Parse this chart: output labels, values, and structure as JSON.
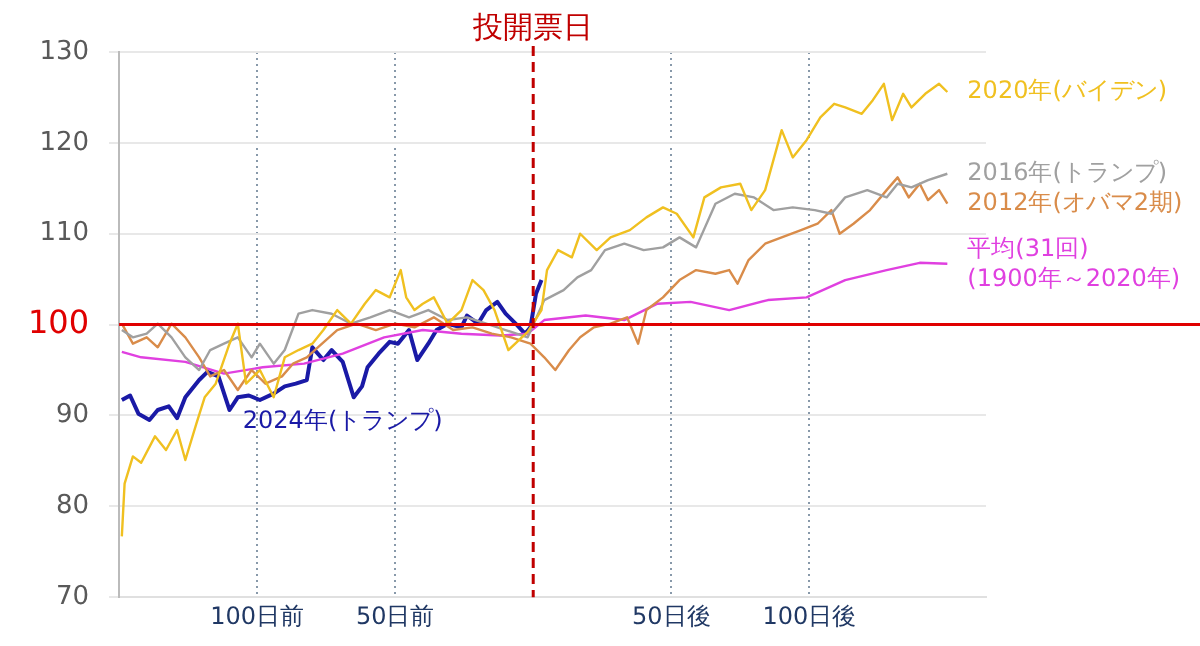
{
  "chart_data": {
    "type": "line",
    "xlim": [
      -150,
      164
    ],
    "ylim": [
      70,
      130
    ],
    "xticks": [
      {
        "value": -100,
        "label": "100日前"
      },
      {
        "value": -50,
        "label": "50日前"
      },
      {
        "value": 50,
        "label": "50日後"
      },
      {
        "value": 100,
        "label": "100日後"
      }
    ],
    "yticks": [
      70,
      80,
      90,
      100,
      110,
      120,
      130
    ],
    "grid": true,
    "legend": false,
    "marker": "none",
    "line_style": "solid",
    "ref_lines": [
      {
        "axis": "y",
        "value": 100,
        "label": null,
        "color": "#e00000",
        "line_style": "solid"
      },
      {
        "axis": "x",
        "value": 0,
        "label": "投開票日",
        "color": "#c00000",
        "line_style": "dashed"
      }
    ],
    "series": [
      {
        "name": "2020年(バイデン)",
        "color": "#f0c020",
        "x": [
          -149,
          -148,
          -145,
          -142,
          -137,
          -133,
          -129,
          -126,
          -122,
          -119,
          -115,
          -110,
          -107,
          -104,
          -99,
          -94,
          -90,
          -85,
          -80,
          -76,
          -71,
          -66,
          -61,
          -57,
          -52,
          -48,
          -46,
          -43,
          -40,
          -36,
          -31,
          -26,
          -22,
          -18,
          -14,
          -9,
          -2,
          3,
          5,
          9,
          14,
          17,
          23,
          28,
          35,
          41,
          47,
          52,
          58,
          62,
          68,
          75,
          79,
          84,
          90,
          94,
          99,
          104,
          109,
          113,
          119,
          123,
          127,
          130,
          134,
          137,
          142,
          147,
          150
        ],
        "values": [
          76.7,
          82.5,
          85.5,
          84.8,
          87.7,
          86.2,
          88.4,
          85.1,
          89.1,
          92,
          93.5,
          97.9,
          100.1,
          93.5,
          95,
          92,
          96.4,
          97.2,
          97.9,
          99.4,
          101.6,
          100.1,
          102.3,
          103.8,
          103,
          106,
          103,
          101.6,
          102.3,
          103,
          100.1,
          101.6,
          104.9,
          103.8,
          101.6,
          97.2,
          99.2,
          101.6,
          106,
          108.2,
          107.4,
          110,
          108.2,
          109.6,
          110.4,
          111.8,
          112.9,
          112.2,
          109.6,
          114,
          115.1,
          115.5,
          112.6,
          114.8,
          121.4,
          118.4,
          120.3,
          122.8,
          124.3,
          123.9,
          123.2,
          124.7,
          126.5,
          122.5,
          125.4,
          123.9,
          125.4,
          126.5,
          125.6
        ]
      },
      {
        "name": "2016年(トランプ)",
        "color": "#a0a0a0",
        "x": [
          -149,
          -145,
          -140,
          -136,
          -131,
          -126,
          -121,
          -117,
          -112,
          -107,
          -102,
          -99,
          -94,
          -90,
          -85,
          -80,
          -73,
          -66,
          -59,
          -52,
          -45,
          -38,
          -31,
          -24,
          -17,
          -10,
          -2,
          4,
          11,
          16,
          21,
          26,
          33,
          40,
          47,
          53,
          59,
          66,
          73,
          80,
          87,
          94,
          102,
          108,
          113,
          121,
          128,
          132,
          137,
          143,
          150
        ],
        "values": [
          99.4,
          98.6,
          99,
          100.1,
          98.6,
          96.4,
          95,
          97.2,
          97.9,
          98.6,
          96.4,
          97.9,
          95.7,
          97.2,
          101.2,
          101.6,
          101.2,
          100.1,
          100.8,
          101.6,
          100.8,
          101.6,
          100.5,
          100.8,
          100.1,
          99.4,
          98.6,
          102.7,
          103.8,
          105.2,
          106,
          108.2,
          108.9,
          108.2,
          108.5,
          109.6,
          108.5,
          113.3,
          114.4,
          114,
          112.6,
          112.9,
          112.6,
          112.2,
          114,
          114.8,
          114,
          115.5,
          115.1,
          115.9,
          116.6
        ]
      },
      {
        "name": "2012年(オバマ2期)",
        "color": "#d98c4a",
        "x": [
          -149,
          -145,
          -140,
          -136,
          -131,
          -126,
          -121,
          -117,
          -112,
          -107,
          -102,
          -97,
          -91,
          -87,
          -82,
          -78,
          -71,
          -64,
          -57,
          -50,
          -43,
          -36,
          -29,
          -22,
          -15,
          -8,
          -1,
          4,
          8,
          13,
          17,
          22,
          28,
          34,
          38,
          41,
          47,
          53,
          59,
          66,
          71,
          74,
          78,
          84,
          90,
          97,
          103,
          108,
          111,
          116,
          122,
          128,
          132,
          136,
          140,
          143,
          147,
          150
        ],
        "values": [
          100.1,
          97.9,
          98.6,
          97.5,
          100.1,
          98.6,
          96.4,
          94.3,
          95,
          92.8,
          95,
          93.5,
          94.3,
          95.7,
          96.4,
          97.5,
          99.4,
          100.1,
          99.4,
          100.1,
          99.7,
          100.8,
          99.4,
          99.7,
          99,
          98.6,
          97.9,
          96.4,
          95,
          97.2,
          98.6,
          99.7,
          100.1,
          100.8,
          97.9,
          101.6,
          103,
          104.9,
          106,
          105.6,
          106,
          104.5,
          107.1,
          108.9,
          109.6,
          110.4,
          111.1,
          112.6,
          110,
          111.1,
          112.6,
          114.8,
          116.2,
          114,
          115.5,
          113.7,
          114.8,
          113.3
        ]
      },
      {
        "name": "平均(31回)\n(1900年～2020年)",
        "color": "#e040e0",
        "x": [
          -149,
          -142,
          -126,
          -112,
          -98,
          -83,
          -69,
          -54,
          -40,
          -26,
          -12,
          -2,
          4,
          19,
          33,
          45,
          57,
          71,
          85,
          99,
          113,
          128,
          140,
          150
        ],
        "values": [
          97,
          96.4,
          95.9,
          94.6,
          95.3,
          95.7,
          96.8,
          98.6,
          99.4,
          99,
          98.8,
          99,
          100.5,
          101,
          100.5,
          102.3,
          102.5,
          101.6,
          102.7,
          103,
          104.9,
          106,
          106.8,
          106.7
        ]
      },
      {
        "name": "2024年(トランプ)",
        "color": "#1a1aa6",
        "x": [
          -149,
          -146,
          -143,
          -139,
          -136,
          -132,
          -129,
          -126,
          -121,
          -118,
          -114,
          -110,
          -107,
          -103,
          -99,
          -94,
          -90,
          -86,
          -82,
          -80,
          -76,
          -73,
          -69,
          -65,
          -62,
          -60,
          -56,
          -52,
          -49,
          -45,
          -42,
          -38,
          -35,
          -31,
          -26,
          -24,
          -20,
          -17,
          -13,
          -10,
          -6,
          -3,
          -1,
          1,
          3
        ],
        "values": [
          91.7,
          92.2,
          90.2,
          89.5,
          90.6,
          91,
          89.7,
          92,
          93.9,
          94.8,
          94.3,
          90.6,
          92,
          92.2,
          91.7,
          92.4,
          93.2,
          93.5,
          93.9,
          97.5,
          96.1,
          97.2,
          95.9,
          92,
          93.2,
          95.3,
          96.8,
          98.1,
          97.9,
          99.4,
          96.1,
          97.9,
          99.4,
          100.1,
          99.7,
          101,
          100.1,
          101.6,
          102.5,
          101.2,
          100,
          99,
          99.7,
          103.4,
          104.9
        ]
      }
    ]
  }
}
